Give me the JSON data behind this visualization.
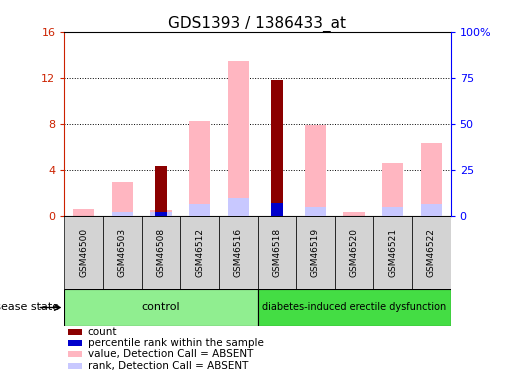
{
  "title": "GDS1393 / 1386433_at",
  "samples": [
    "GSM46500",
    "GSM46503",
    "GSM46508",
    "GSM46512",
    "GSM46516",
    "GSM46518",
    "GSM46519",
    "GSM46520",
    "GSM46521",
    "GSM46522"
  ],
  "n_control": 5,
  "count_values": [
    0,
    0,
    4.3,
    0,
    0,
    11.8,
    0,
    0,
    0,
    0
  ],
  "percentile_values": [
    0,
    0,
    0.35,
    0,
    0,
    1.1,
    0,
    0,
    0,
    0
  ],
  "value_absent": [
    0.6,
    2.9,
    0.5,
    8.2,
    13.5,
    0,
    7.9,
    0.3,
    4.6,
    6.3
  ],
  "rank_absent": [
    0,
    0.35,
    0.35,
    1.0,
    1.55,
    0,
    0.75,
    0,
    0.75,
    1.0
  ],
  "ylim_left": [
    0,
    16
  ],
  "ylim_right": [
    0,
    100
  ],
  "yticks_left": [
    0,
    4,
    8,
    12,
    16
  ],
  "yticks_right": [
    0,
    25,
    50,
    75,
    100
  ],
  "yticklabels_left": [
    "0",
    "4",
    "8",
    "12",
    "16"
  ],
  "yticklabels_right": [
    "0",
    "25",
    "50",
    "75",
    "100%"
  ],
  "color_count": "#8B0000",
  "color_percentile": "#0000CC",
  "color_value_absent": "#FFB6C1",
  "color_rank_absent": "#C8C8FF",
  "color_control_bg": "#90EE90",
  "color_disease_bg": "#44DD44",
  "color_label_bg": "#D3D3D3",
  "label_control": "control",
  "label_disease": "diabetes-induced erectile dysfunction",
  "disease_state_label": "disease state",
  "bar_width": 0.55,
  "legend_items": [
    {
      "label": "count",
      "color": "#8B0000"
    },
    {
      "label": "percentile rank within the sample",
      "color": "#0000CC"
    },
    {
      "label": "value, Detection Call = ABSENT",
      "color": "#FFB6C1"
    },
    {
      "label": "rank, Detection Call = ABSENT",
      "color": "#C8C8FF"
    }
  ]
}
